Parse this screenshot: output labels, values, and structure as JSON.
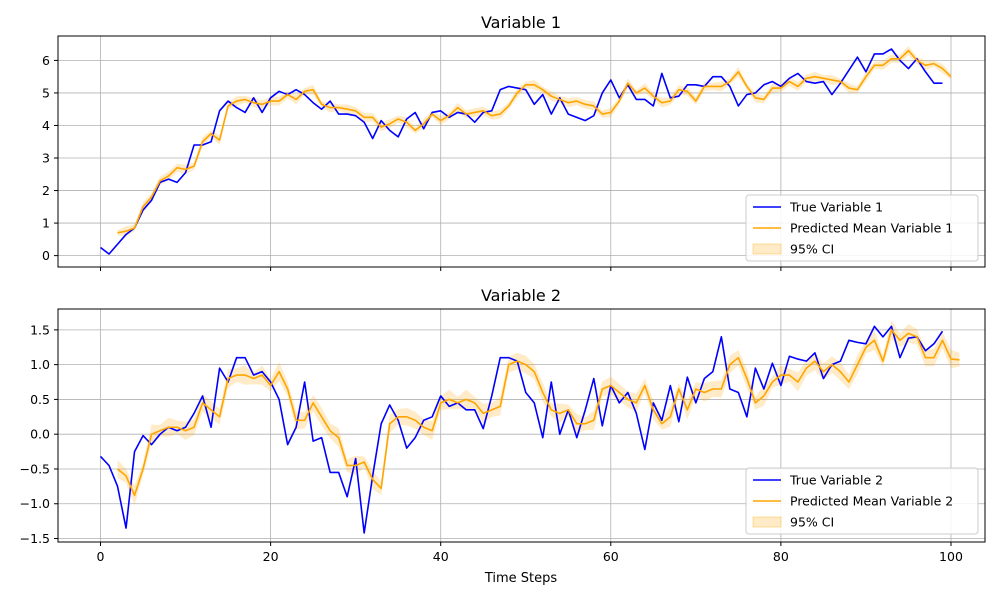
{
  "chart_data": [
    {
      "type": "line",
      "title": "Variable 1",
      "xlabel": "",
      "ylabel": "",
      "xlim": [
        -5,
        104
      ],
      "ylim": [
        -0.35,
        6.75
      ],
      "xticks": [
        0,
        20,
        40,
        60,
        80,
        100
      ],
      "yticks": [
        0,
        1,
        2,
        3,
        4,
        5,
        6
      ],
      "ytick_labels": [
        "0",
        "1",
        "2",
        "3",
        "4",
        "5",
        "6"
      ],
      "grid": true,
      "legend_position": "lower-right",
      "series": [
        {
          "name": "True Variable 1",
          "color": "#0000ff",
          "x_start": 0,
          "values": [
            0.25,
            0.05,
            0.35,
            0.65,
            0.85,
            1.4,
            1.7,
            2.25,
            2.35,
            2.25,
            2.55,
            3.4,
            3.4,
            3.5,
            4.45,
            4.75,
            4.55,
            4.4,
            4.85,
            4.4,
            4.85,
            5.05,
            4.95,
            5.1,
            4.95,
            4.7,
            4.5,
            4.75,
            4.35,
            4.35,
            4.3,
            4.1,
            3.6,
            4.15,
            3.85,
            3.65,
            4.2,
            4.4,
            3.9,
            4.4,
            4.45,
            4.25,
            4.4,
            4.35,
            4.1,
            4.4,
            4.45,
            5.1,
            5.2,
            5.15,
            5.1,
            4.65,
            4.95,
            4.35,
            4.85,
            4.35,
            4.25,
            4.15,
            4.3,
            5.0,
            5.4,
            4.85,
            5.25,
            4.8,
            4.8,
            4.6,
            5.6,
            4.85,
            4.9,
            5.25,
            5.25,
            5.2,
            5.5,
            5.5,
            5.2,
            4.6,
            4.95,
            5.0,
            5.25,
            5.35,
            5.2,
            5.45,
            5.6,
            5.35,
            5.3,
            5.35,
            4.95,
            5.3,
            5.7,
            6.1,
            5.65,
            6.2,
            6.2,
            6.35,
            6.0,
            5.75,
            6.05,
            5.65,
            5.3,
            5.3
          ]
        },
        {
          "name": "Predicted Mean Variable 1",
          "color": "#ffa500",
          "x_start": 2,
          "values": [
            0.7,
            0.75,
            0.85,
            1.5,
            1.8,
            2.3,
            2.45,
            2.7,
            2.65,
            2.75,
            3.5,
            3.75,
            3.55,
            4.6,
            4.75,
            4.8,
            4.7,
            4.65,
            4.75,
            4.75,
            4.95,
            4.8,
            5.05,
            5.1,
            4.65,
            4.55,
            4.55,
            4.5,
            4.45,
            4.25,
            4.25,
            3.95,
            4.05,
            4.2,
            4.1,
            3.85,
            4.05,
            4.35,
            4.15,
            4.3,
            4.55,
            4.35,
            4.4,
            4.45,
            4.3,
            4.35,
            4.6,
            5.0,
            5.25,
            5.25,
            5.1,
            4.9,
            4.8,
            4.7,
            4.75,
            4.65,
            4.6,
            4.35,
            4.4,
            4.75,
            5.3,
            5.0,
            5.15,
            4.9,
            4.7,
            4.75,
            5.1,
            5.05,
            4.75,
            5.2,
            5.2,
            5.2,
            5.35,
            5.65,
            5.2,
            4.85,
            4.8,
            5.15,
            5.15,
            5.35,
            5.2,
            5.45,
            5.5,
            5.45,
            5.4,
            5.35,
            5.15,
            5.1,
            5.5,
            5.85,
            5.85,
            6.05,
            6.05,
            6.3,
            6.0,
            5.85,
            5.9,
            5.75,
            5.5
          ]
        }
      ],
      "ci": {
        "name": "95% CI",
        "color": "#ffa500",
        "half_width": 0.15
      }
    },
    {
      "type": "line",
      "title": "Variable 2",
      "xlabel": "Time Steps",
      "ylabel": "",
      "xlim": [
        -5,
        104
      ],
      "ylim": [
        -1.55,
        1.8
      ],
      "xticks": [
        0,
        20,
        40,
        60,
        80,
        100
      ],
      "yticks": [
        -1.5,
        -1.0,
        -0.5,
        0.0,
        0.5,
        1.0,
        1.5
      ],
      "ytick_labels": [
        "−1.5",
        "−1.0",
        "−0.5",
        "0.0",
        "0.5",
        "1.0",
        "1.5"
      ],
      "grid": true,
      "legend_position": "lower-right",
      "series": [
        {
          "name": "True Variable 2",
          "color": "#0000ff",
          "x_start": 0,
          "values": [
            -0.32,
            -0.45,
            -0.75,
            -1.35,
            -0.25,
            -0.02,
            -0.15,
            0.0,
            0.1,
            0.05,
            0.1,
            0.3,
            0.55,
            0.1,
            0.95,
            0.75,
            1.1,
            1.1,
            0.85,
            0.9,
            0.75,
            0.5,
            -0.15,
            0.1,
            0.75,
            -0.1,
            -0.05,
            -0.55,
            -0.55,
            -0.9,
            -0.35,
            -1.42,
            -0.6,
            0.15,
            0.42,
            0.2,
            -0.2,
            -0.05,
            0.2,
            0.25,
            0.55,
            0.4,
            0.45,
            0.35,
            0.35,
            0.08,
            0.55,
            1.1,
            1.1,
            1.05,
            0.6,
            0.45,
            -0.05,
            0.75,
            0.0,
            0.35,
            -0.05,
            0.35,
            0.8,
            0.12,
            0.7,
            0.45,
            0.6,
            0.3,
            -0.22,
            0.45,
            0.2,
            0.7,
            0.18,
            0.82,
            0.45,
            0.8,
            0.9,
            1.4,
            0.65,
            0.6,
            0.25,
            0.95,
            0.65,
            1.02,
            0.7,
            1.12,
            1.08,
            1.05,
            1.17,
            0.8,
            1.0,
            1.05,
            1.35,
            1.32,
            1.3,
            1.55,
            1.4,
            1.55,
            1.1,
            1.38,
            1.4,
            1.2,
            1.3,
            1.48
          ]
        },
        {
          "name": "Predicted Mean Variable 2",
          "color": "#ffa500",
          "x_start": 2,
          "values": [
            -0.5,
            -0.6,
            -0.88,
            -0.5,
            0.0,
            0.05,
            0.1,
            0.1,
            0.05,
            0.1,
            0.45,
            0.35,
            0.25,
            0.8,
            0.85,
            0.85,
            0.8,
            0.85,
            0.7,
            0.9,
            0.65,
            0.2,
            0.2,
            0.45,
            0.25,
            0.05,
            -0.05,
            -0.45,
            -0.45,
            -0.4,
            -0.65,
            -0.78,
            0.15,
            0.25,
            0.25,
            0.2,
            0.1,
            0.05,
            0.45,
            0.5,
            0.45,
            0.5,
            0.45,
            0.3,
            0.35,
            0.4,
            1.0,
            1.05,
            1.0,
            0.9,
            0.6,
            0.35,
            0.3,
            0.35,
            0.15,
            0.15,
            0.2,
            0.65,
            0.7,
            0.6,
            0.5,
            0.45,
            0.7,
            0.35,
            0.15,
            0.25,
            0.65,
            0.35,
            0.65,
            0.6,
            0.65,
            0.65,
            1.0,
            1.1,
            0.8,
            0.45,
            0.55,
            0.75,
            0.85,
            0.85,
            0.75,
            0.95,
            1.05,
            0.9,
            1.0,
            0.9,
            0.75,
            1.0,
            1.25,
            1.35,
            1.05,
            1.5,
            1.35,
            1.45,
            1.4,
            1.1,
            1.1,
            1.35,
            1.08,
            1.07
          ]
        }
      ],
      "ci": {
        "name": "95% CI",
        "color": "#ffa500",
        "half_width": 0.14
      }
    }
  ]
}
